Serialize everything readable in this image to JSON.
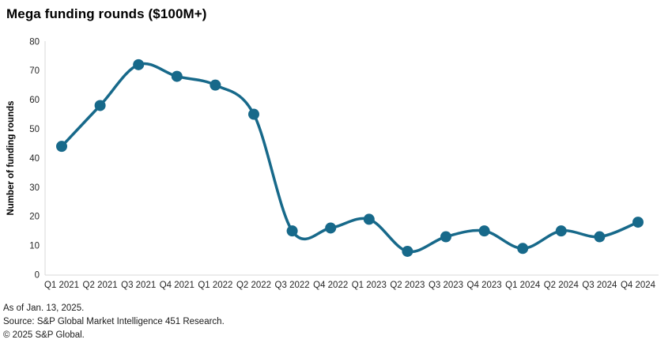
{
  "title": "Mega funding rounds ($100M+)",
  "footer": {
    "as_of": "As of Jan. 13, 2025.",
    "source": "Source: S&P Global Market Intelligence 451 Research.",
    "copyright": "© 2025 S&P Global."
  },
  "chart_data": {
    "type": "line",
    "title": "Mega funding rounds ($100M+)",
    "xlabel": "",
    "ylabel": "Number of funding rounds",
    "categories": [
      "Q1 2021",
      "Q2 2021",
      "Q3 2021",
      "Q4 2021",
      "Q1 2022",
      "Q2 2022",
      "Q3 2022",
      "Q4 2022",
      "Q1 2023",
      "Q2 2023",
      "Q3 2023",
      "Q4 2023",
      "Q1 2024",
      "Q2 2024",
      "Q3 2024",
      "Q4 2024"
    ],
    "values": [
      44,
      58,
      72,
      68,
      65,
      55,
      15,
      16,
      19,
      8,
      13,
      15,
      9,
      15,
      13,
      18
    ],
    "ylim": [
      0,
      80
    ],
    "ytick_step": 10,
    "grid": false,
    "legend": "none",
    "line_color": "#17698A",
    "axis_color": "#d9d9d9",
    "tick_text_color": "#262626",
    "marker": "circle"
  }
}
